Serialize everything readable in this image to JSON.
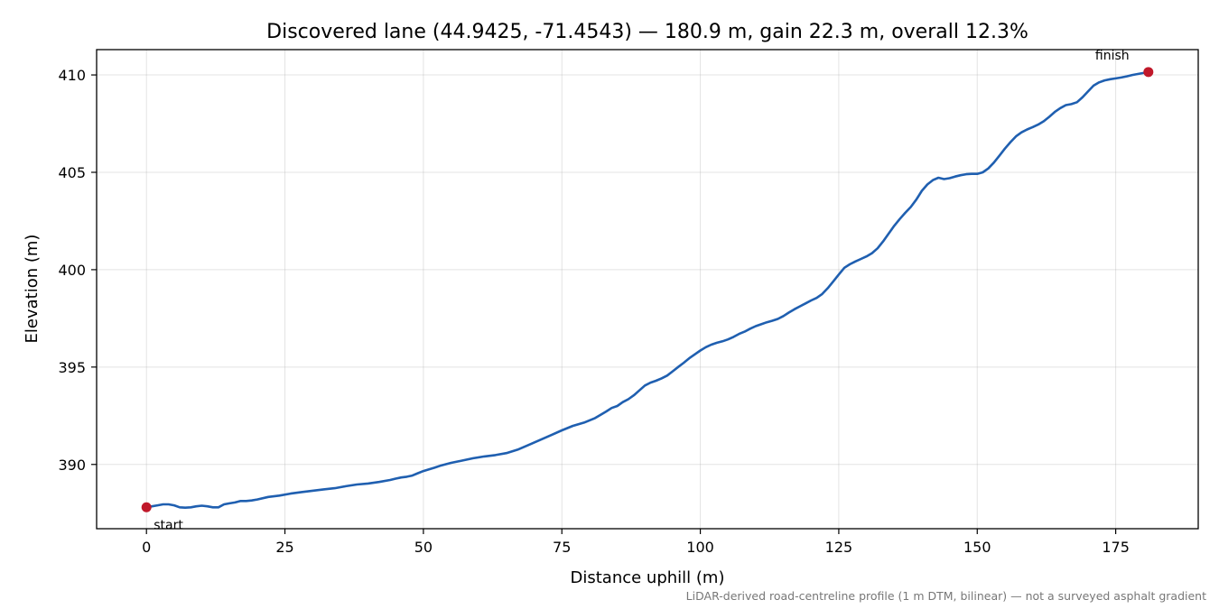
{
  "chart_data": {
    "type": "line",
    "title": "Discovered lane (44.9425, -71.4543) — 180.9 m, gain 22.3 m, overall 12.3%",
    "xlabel": "Distance uphill (m)",
    "ylabel": "Elevation (m)",
    "xlim": [
      -9,
      189.9
    ],
    "ylim": [
      386.7,
      411.3
    ],
    "xticks": [
      0,
      25,
      50,
      75,
      100,
      125,
      150,
      175
    ],
    "yticks": [
      390,
      395,
      400,
      405,
      410
    ],
    "grid": true,
    "line_color": "#1f5fb0",
    "marker_color": "#c0182a",
    "annotations": {
      "start": "start",
      "finish": "finish"
    },
    "footnote": "LiDAR-derived road-centreline profile (1 m DTM, bilinear) — not a surveyed asphalt gradient",
    "series": [
      {
        "x": [
          0,
          1,
          2,
          3,
          4,
          5,
          6,
          7,
          8,
          9,
          10,
          11,
          12,
          13,
          14,
          15,
          16,
          17,
          18,
          19,
          20,
          22,
          24,
          26,
          28,
          30,
          32,
          34,
          36,
          38,
          40,
          42,
          44,
          45,
          46,
          47,
          48,
          49,
          50,
          51,
          52,
          53,
          55,
          57,
          59,
          61,
          63,
          65,
          67,
          69,
          71,
          73,
          75,
          77,
          79,
          81,
          82,
          83,
          84,
          85,
          86,
          87,
          88,
          89,
          90,
          91,
          92,
          93,
          94,
          95,
          96,
          97,
          98,
          99,
          100,
          101,
          102,
          103,
          104,
          105,
          106,
          107,
          108,
          109,
          110,
          111,
          112,
          113,
          114,
          115,
          116,
          117,
          118,
          119,
          120,
          121,
          122,
          123,
          124,
          125,
          126,
          127,
          128,
          129,
          130,
          131,
          132,
          133,
          134,
          135,
          136,
          137,
          138,
          139,
          140,
          141,
          142,
          143,
          144,
          145,
          146,
          147,
          148,
          149,
          150,
          151,
          152,
          153,
          154,
          155,
          156,
          157,
          158,
          159,
          160,
          161,
          162,
          163,
          164,
          165,
          166,
          167,
          168,
          169,
          170,
          171,
          172,
          173,
          174,
          175,
          176,
          177,
          178,
          179,
          180,
          180.9
        ],
        "y": [
          387.8,
          387.85,
          387.9,
          387.95,
          387.95,
          387.9,
          387.8,
          387.78,
          387.8,
          387.85,
          387.88,
          387.85,
          387.8,
          387.8,
          387.95,
          388.0,
          388.05,
          388.12,
          388.12,
          388.15,
          388.2,
          388.33,
          388.4,
          388.5,
          388.58,
          388.65,
          388.72,
          388.78,
          388.88,
          388.97,
          389.02,
          389.1,
          389.2,
          389.27,
          389.33,
          389.37,
          389.43,
          389.55,
          389.66,
          389.75,
          389.83,
          389.93,
          390.08,
          390.2,
          390.32,
          390.41,
          390.48,
          390.58,
          390.76,
          391.0,
          391.25,
          391.5,
          391.75,
          391.98,
          392.15,
          392.38,
          392.55,
          392.72,
          392.9,
          393.0,
          393.2,
          393.35,
          393.55,
          393.8,
          394.05,
          394.2,
          394.3,
          394.42,
          394.56,
          394.78,
          395.0,
          395.22,
          395.45,
          395.65,
          395.85,
          396.02,
          396.15,
          396.25,
          396.32,
          396.42,
          396.55,
          396.7,
          396.82,
          396.97,
          397.1,
          397.2,
          397.3,
          397.38,
          397.47,
          397.62,
          397.8,
          397.97,
          398.12,
          398.27,
          398.42,
          398.55,
          398.75,
          399.05,
          399.4,
          399.75,
          400.1,
          400.28,
          400.42,
          400.55,
          400.68,
          400.85,
          401.1,
          401.45,
          401.85,
          402.25,
          402.6,
          402.92,
          403.22,
          403.6,
          404.05,
          404.38,
          404.6,
          404.72,
          404.65,
          404.7,
          404.78,
          404.85,
          404.9,
          404.92,
          404.92,
          405.0,
          405.2,
          405.5,
          405.85,
          406.22,
          406.55,
          406.85,
          407.05,
          407.2,
          407.32,
          407.45,
          407.62,
          407.85,
          408.1,
          408.3,
          408.45,
          408.5,
          408.6,
          408.85,
          409.15,
          409.45,
          409.62,
          409.72,
          409.78,
          409.82,
          409.87,
          409.93,
          410.0,
          410.05,
          410.1,
          410.15
        ]
      }
    ]
  }
}
